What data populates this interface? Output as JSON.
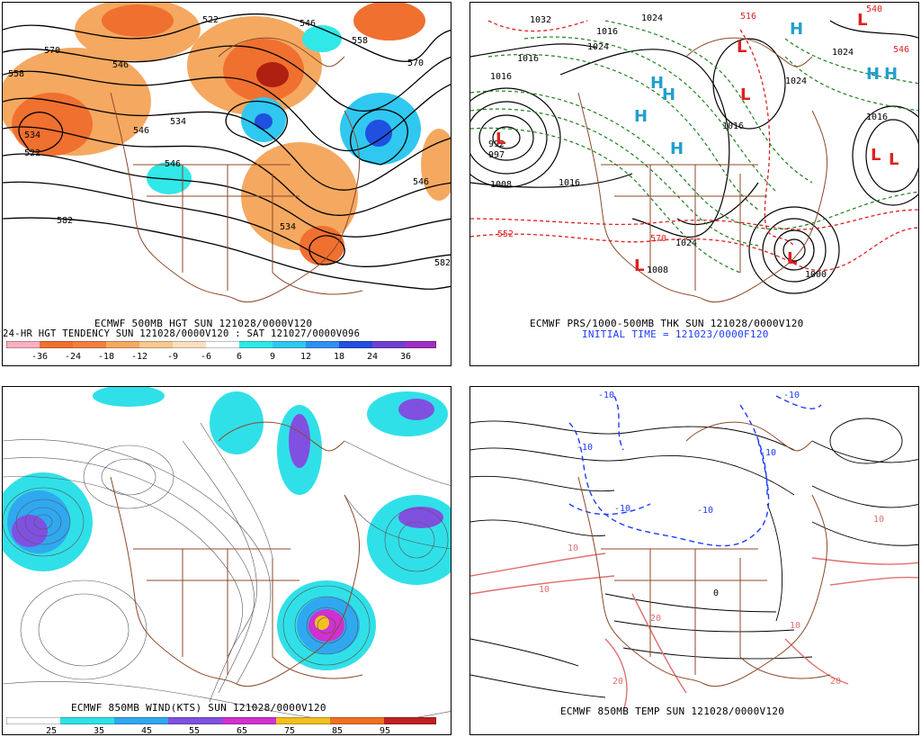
{
  "panels": {
    "p1": {
      "title_line1": "ECMWF 500MB HGT SUN 121028/0000V120",
      "title_line2": "24-HR HGT TENDENCY SUN 121028/0000V120 : SAT 121027/0000V096",
      "contour_labels": [
        "570",
        "558",
        "546",
        "534",
        "522",
        "546",
        "570",
        "558",
        "546",
        "534",
        "546",
        "582",
        "582",
        "522",
        "546",
        "534"
      ],
      "colorbar": {
        "ticks": [
          "-36",
          "-24",
          "-18",
          "-12",
          "-9",
          "-6",
          "6",
          "9",
          "12",
          "18",
          "24",
          "36"
        ],
        "colors": [
          "#f8b0c0",
          "#f07030",
          "#f09040",
          "#f5a860",
          "#f8c890",
          "#ffffff",
          "#ffffff",
          "#30e8e8",
          "#30c8f0",
          "#3090f0",
          "#2050e0",
          "#9040d0",
          "#a030c0"
        ]
      }
    },
    "p2": {
      "title_line1": "ECMWF PRS/1000-500MB THK SUN 121028/0000V120",
      "title_line2": "INITIAL TIME = 121023/0000F120",
      "pressure_labels": [
        "1032",
        "1024",
        "1016",
        "1024",
        "1016",
        "1016",
        "1008",
        "1024",
        "1016",
        "1024",
        "1016",
        "1000",
        "1016",
        "1008",
        "997",
        "992",
        "1024"
      ],
      "thickness_labels": [
        "540",
        "546",
        "552",
        "570",
        "516"
      ],
      "high_marks": [
        "H",
        "H",
        "H",
        "H",
        "H",
        "H",
        "H"
      ],
      "low_marks": [
        "L",
        "L",
        "L",
        "L",
        "L",
        "L",
        "L",
        "L"
      ],
      "colors": {
        "pressure": "#000000",
        "thickness_warm": "#e02020",
        "thickness_cold": "#208020",
        "high": "#20a0d0",
        "low": "#e02020"
      }
    },
    "p3": {
      "title_line1": "ECMWF 850MB WIND(KTS) SUN 121028/0000V120",
      "colorbar": {
        "ticks": [
          "25",
          "35",
          "45",
          "55",
          "65",
          "75",
          "85",
          "95"
        ],
        "colors": [
          "#ffffff",
          "#30e0e8",
          "#30a8f0",
          "#8050e0",
          "#d030d0",
          "#f0c020",
          "#f07020",
          "#c02020"
        ]
      }
    },
    "p4": {
      "title_line1": "ECMWF 850MB TEMP SUN 121028/0000V120",
      "temp_labels": [
        "-10",
        "-10",
        "-10",
        "-10",
        "-10",
        "-10",
        "0",
        "10",
        "10",
        "10",
        "10",
        "20",
        "20",
        "20"
      ],
      "colors": {
        "cold": "#1e3cff",
        "warm": "#e07070",
        "neutral": "#000000",
        "coast": "#8b4a2a"
      }
    }
  }
}
